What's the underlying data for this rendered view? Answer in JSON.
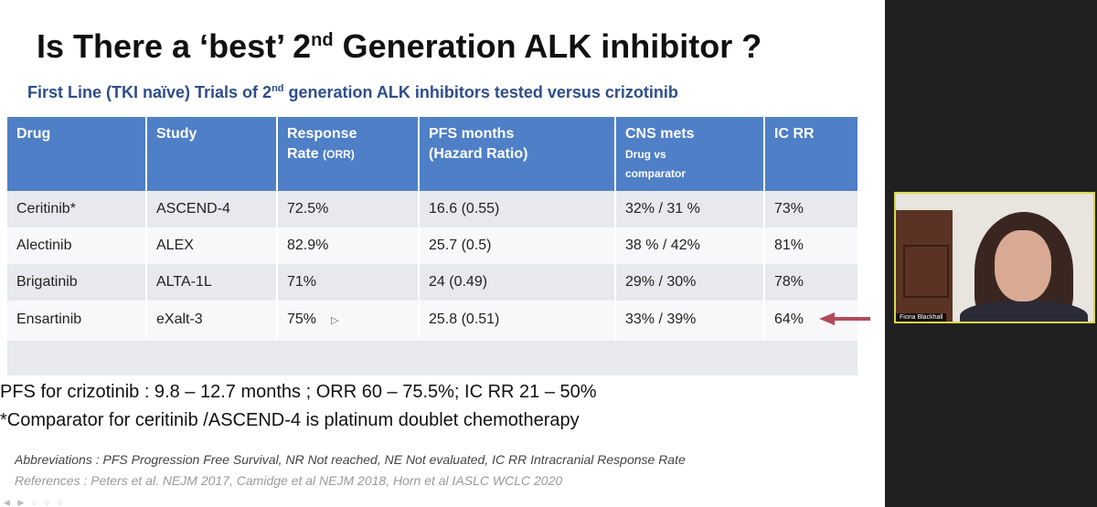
{
  "slide": {
    "title_main": "Is There a ‘best’ 2",
    "title_sup": "nd",
    "title_rest": " Generation ALK inhibitor ?",
    "subtitle_main": "First Line (TKI naïve) Trials of 2",
    "subtitle_sup": "nd",
    "subtitle_rest": " generation ALK inhibitors tested versus crizotinib",
    "table": {
      "headers": {
        "drug": "Drug",
        "study": "Study",
        "response": "Response",
        "rate": "Rate",
        "orr": "(ORR)",
        "pfs": "PFS months",
        "hr": "(Hazard Ratio)",
        "cns": "CNS mets",
        "drug_vs": "Drug vs",
        "comparator": "comparator",
        "icrr": "IC RR"
      },
      "rows": [
        {
          "drug": "Ceritinib*",
          "study": "ASCEND-4",
          "orr": "72.5%",
          "pfs": "16.6 (0.55)",
          "cns": "32% / 31 %",
          "icrr": "73%"
        },
        {
          "drug": "Alectinib",
          "study": "ALEX",
          "orr": "82.9%",
          "pfs": "25.7 (0.5)",
          "cns": "38 % / 42%",
          "icrr": "81%"
        },
        {
          "drug": "Brigatinib",
          "study": "ALTA-1L",
          "orr": "71%",
          "pfs": "24 (0.49)",
          "cns": "29% / 30%",
          "icrr": "78%"
        },
        {
          "drug": "Ensartinib",
          "study": "eXalt-3",
          "orr": "75%",
          "pfs": "25.8  (0.51)",
          "cns": "33%  / 39%",
          "icrr": "64%"
        }
      ]
    },
    "note1": "PFS for crizotinib  : 9.8 – 12.7 months ; ORR 60 – 75.5%; IC RR 21 – 50%",
    "note2": "*Comparator for ceritinib /ASCEND-4 is platinum doublet chemotherapy",
    "abbreviations": "Abbreviations : PFS Progression Free Survival,  NR Not reached, NE Not evaluated, IC RR Intracranial Response Rate",
    "references": "References : Peters et al. NEJM 2017, Camidge et al NEJM 2018, Horn et al IASLC WCLC 2020"
  },
  "participant": {
    "name": "Fiona Blackhall"
  },
  "colors": {
    "header_bg": "#4f7fc6",
    "subtitle": "#2e4e8c",
    "row_shade": "#e7e9ee",
    "arrow": "#b14a5a",
    "speaker_border": "#d8d84a"
  }
}
